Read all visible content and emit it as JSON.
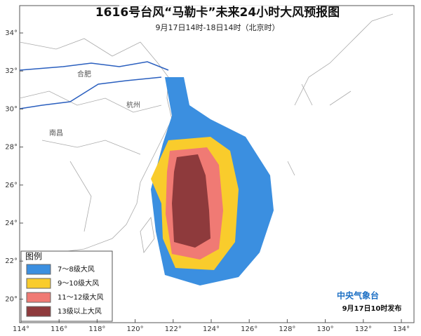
{
  "title": "1616号台风“马勒卡”未来24小时大风预报图",
  "subtitle": "9月17日14时-18日14时（北京时）",
  "lon_ticks": [
    {
      "value": 114,
      "label": "114°"
    },
    {
      "value": 116,
      "label": "116°"
    },
    {
      "value": 118,
      "label": "118°"
    },
    {
      "value": 120,
      "label": "120°"
    },
    {
      "value": 122,
      "label": "122°"
    },
    {
      "value": 124,
      "label": "124°"
    },
    {
      "value": 126,
      "label": "126°"
    },
    {
      "value": 128,
      "label": "128°"
    },
    {
      "value": 130,
      "label": "130°"
    },
    {
      "value": 132,
      "label": "132°"
    },
    {
      "value": 134,
      "label": "134°"
    }
  ],
  "lat_ticks": [
    {
      "value": 34,
      "label": "34°"
    },
    {
      "value": 32,
      "label": "32°"
    },
    {
      "value": 30,
      "label": "30°"
    },
    {
      "value": 28,
      "label": "28°"
    },
    {
      "value": 26,
      "label": "26°"
    },
    {
      "value": 24,
      "label": "24°"
    },
    {
      "value": 22,
      "label": "22°"
    },
    {
      "value": 20,
      "label": "20°"
    }
  ],
  "cities": [
    "合肥",
    "杭州",
    "南昌"
  ],
  "legend": {
    "title": "图例",
    "items": [
      {
        "label": "7～8级大风",
        "color": "#3b8fe0"
      },
      {
        "label": "9～10级大风",
        "color": "#f9cc2c"
      },
      {
        "label": "11～12级大风",
        "color": "#f07a74"
      },
      {
        "label": "13级以上大风",
        "color": "#8e3a3c"
      }
    ]
  },
  "publisher": "中央气象台",
  "issued": "9月17日10时发布"
}
